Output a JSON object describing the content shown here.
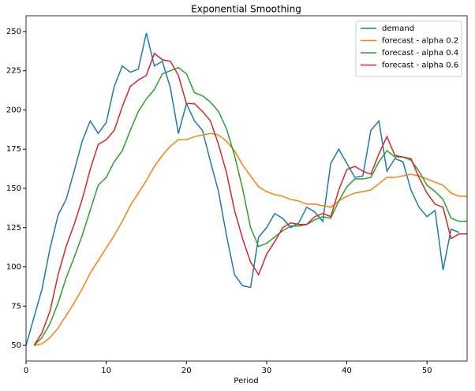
{
  "chart_data": {
    "type": "line",
    "title": "Exponential Smoothing",
    "xlabel": "Period",
    "x": [
      0,
      1,
      2,
      3,
      4,
      5,
      6,
      7,
      8,
      9,
      10,
      11,
      12,
      13,
      14,
      15,
      16,
      17,
      18,
      19,
      20,
      21,
      22,
      23,
      24,
      25,
      26,
      27,
      28,
      29,
      30,
      31,
      32,
      33,
      34,
      35,
      36,
      37,
      38,
      39,
      40,
      41,
      42,
      43,
      44,
      45,
      46,
      47,
      48,
      49,
      50,
      51,
      52,
      53,
      54,
      55
    ],
    "series": [
      {
        "name": "demand",
        "color": "#1f77b4",
        "values": [
          50,
          68,
          86,
          112,
          133,
          143,
          161,
          180,
          193,
          185,
          192,
          215,
          228,
          224,
          226,
          249,
          228,
          231,
          214,
          185,
          204,
          193,
          187,
          167,
          148,
          120,
          95,
          88,
          87,
          119,
          125,
          134,
          131,
          125,
          128,
          138,
          135,
          129,
          166,
          175,
          166,
          157,
          158,
          187,
          193,
          161,
          169,
          167,
          149,
          138,
          132,
          136,
          98,
          124,
          122,
          null
        ]
      },
      {
        "name": "forecast - alpha 0.2",
        "color": "#ff7f0e",
        "values": [
          null,
          50,
          51,
          55,
          61,
          69,
          77,
          86,
          96,
          104,
          112,
          120,
          129,
          139,
          147,
          155,
          164,
          171,
          177,
          181,
          181,
          183,
          184,
          185,
          184,
          180,
          174,
          165,
          158,
          151,
          148,
          146,
          145,
          143,
          142,
          140,
          140,
          139,
          138,
          142,
          145,
          147,
          148,
          149,
          153,
          157,
          157,
          158,
          159,
          158,
          156,
          154,
          152,
          147,
          145,
          145
        ]
      },
      {
        "name": "forecast - alpha 0.4",
        "color": "#2ca02c",
        "values": [
          null,
          50,
          55,
          64,
          77,
          93,
          106,
          120,
          136,
          152,
          157,
          167,
          174,
          187,
          199,
          207,
          213,
          223,
          225,
          227,
          223,
          211,
          209,
          205,
          199,
          188,
          171,
          150,
          125,
          113,
          115,
          119,
          123,
          126,
          126,
          127,
          130,
          132,
          131,
          142,
          151,
          156,
          156,
          157,
          167,
          174,
          170,
          170,
          168,
          161,
          152,
          148,
          143,
          131,
          129,
          129
        ]
      },
      {
        "name": "forecast - alpha 0.6",
        "color": "#d62728",
        "values": [
          null,
          50,
          58,
          72,
          95,
          113,
          127,
          143,
          162,
          178,
          181,
          187,
          202,
          215,
          219,
          222,
          236,
          232,
          231,
          222,
          204,
          204,
          199,
          193,
          178,
          160,
          136,
          118,
          103,
          95,
          108,
          116,
          125,
          128,
          127,
          127,
          132,
          134,
          132,
          149,
          162,
          164,
          161,
          159,
          172,
          183,
          171,
          170,
          169,
          157,
          147,
          140,
          138,
          118,
          121,
          121
        ]
      }
    ],
    "xlim": [
      0,
      55
    ],
    "xticks": [
      0,
      10,
      20,
      30,
      40,
      50
    ],
    "ylim": [
      40,
      260
    ],
    "yticks": [
      50,
      75,
      100,
      125,
      150,
      175,
      200,
      225,
      250
    ],
    "legend": "upper right"
  }
}
